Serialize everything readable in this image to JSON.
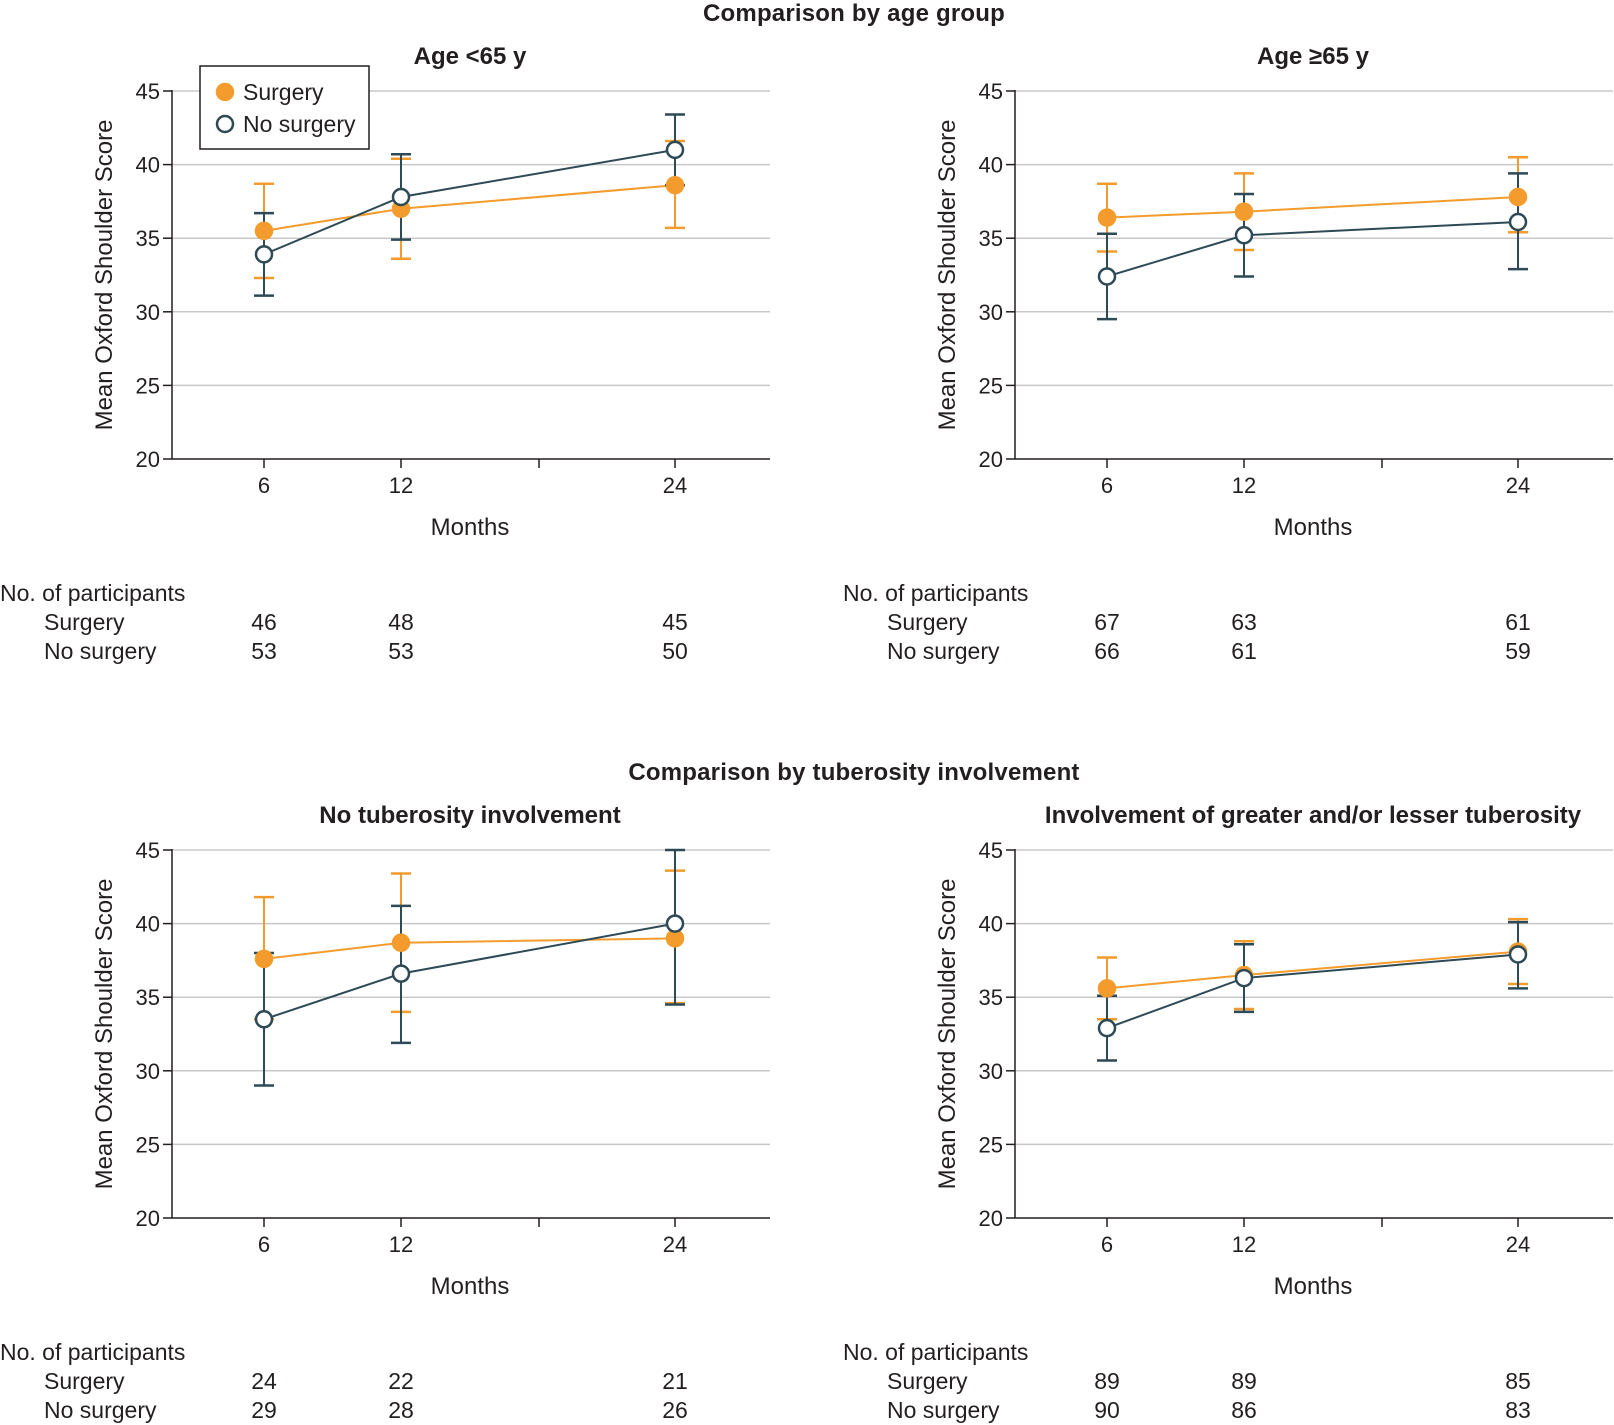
{
  "figure": {
    "section_titles": [
      "Comparison by age group",
      "Comparison by tuberosity involvement"
    ]
  },
  "colors": {
    "surgery": "#f39c2d",
    "no_surgery": "#2d4a56",
    "grid": "#c8c8c8",
    "axis": "#231f20"
  },
  "legend": {
    "surgery_label": "Surgery",
    "no_surgery_label": "No surgery",
    "placement": "top-left of first panel"
  },
  "participants": {
    "header": "No. of participants",
    "row_labels": [
      "Surgery",
      "No surgery"
    ]
  },
  "chart_data": [
    {
      "type": "line",
      "title": "Age <65 y",
      "xlabel": "Months",
      "ylabel": "Mean Oxford Shoulder Score",
      "x": [
        6,
        12,
        24
      ],
      "xlim": [
        0,
        28
      ],
      "x_minor_ticks": [
        18
      ],
      "ylim": [
        20,
        45
      ],
      "yticks": [
        20,
        25,
        30,
        35,
        40,
        45
      ],
      "grid": true,
      "series": [
        {
          "name": "Surgery",
          "values": [
            35.5,
            37.0,
            38.6
          ],
          "ci_low": [
            32.3,
            33.6,
            35.7
          ],
          "ci_high": [
            38.7,
            40.4,
            41.6
          ]
        },
        {
          "name": "No surgery",
          "values": [
            33.9,
            37.8,
            41.0
          ],
          "ci_low": [
            31.1,
            34.9,
            38.6
          ],
          "ci_high": [
            36.7,
            40.7,
            43.4
          ]
        }
      ],
      "participants": {
        "Surgery": [
          46,
          48,
          45
        ],
        "No surgery": [
          53,
          53,
          50
        ]
      }
    },
    {
      "type": "line",
      "title": "Age ≥65 y",
      "xlabel": "Months",
      "ylabel": "Mean Oxford Shoulder Score",
      "x": [
        6,
        12,
        24
      ],
      "xlim": [
        0,
        28
      ],
      "x_minor_ticks": [
        18
      ],
      "ylim": [
        20,
        45
      ],
      "yticks": [
        20,
        25,
        30,
        35,
        40,
        45
      ],
      "grid": true,
      "series": [
        {
          "name": "Surgery",
          "values": [
            36.4,
            36.8,
            37.8
          ],
          "ci_low": [
            34.1,
            34.2,
            35.4
          ],
          "ci_high": [
            38.7,
            39.4,
            40.5
          ]
        },
        {
          "name": "No surgery",
          "values": [
            32.4,
            35.2,
            36.1
          ],
          "ci_low": [
            29.5,
            32.4,
            32.9
          ],
          "ci_high": [
            35.3,
            38.0,
            39.4
          ]
        }
      ],
      "participants": {
        "Surgery": [
          67,
          63,
          61
        ],
        "No surgery": [
          66,
          61,
          59
        ]
      }
    },
    {
      "type": "line",
      "title": "No tuberosity involvement",
      "xlabel": "Months",
      "ylabel": "Mean Oxford Shoulder Score",
      "x": [
        6,
        12,
        24
      ],
      "xlim": [
        0,
        28
      ],
      "x_minor_ticks": [
        18
      ],
      "ylim": [
        20,
        45
      ],
      "yticks": [
        20,
        25,
        30,
        35,
        40,
        45
      ],
      "grid": true,
      "series": [
        {
          "name": "Surgery",
          "values": [
            37.6,
            38.7,
            39.0
          ],
          "ci_low": [
            33.5,
            34.0,
            34.6
          ],
          "ci_high": [
            41.8,
            43.4,
            43.6
          ]
        },
        {
          "name": "No surgery",
          "values": [
            33.5,
            36.6,
            40.0
          ],
          "ci_low": [
            29.0,
            31.9,
            34.5
          ],
          "ci_high": [
            38.0,
            41.2,
            45.0
          ]
        }
      ],
      "participants": {
        "Surgery": [
          24,
          22,
          21
        ],
        "No surgery": [
          29,
          28,
          26
        ]
      }
    },
    {
      "type": "line",
      "title": "Involvement of greater and/or lesser tuberosity",
      "xlabel": "Months",
      "ylabel": "Mean Oxford Shoulder Score",
      "x": [
        6,
        12,
        24
      ],
      "xlim": [
        0,
        28
      ],
      "x_minor_ticks": [
        18
      ],
      "ylim": [
        20,
        45
      ],
      "yticks": [
        20,
        25,
        30,
        35,
        40,
        45
      ],
      "grid": true,
      "series": [
        {
          "name": "Surgery",
          "values": [
            35.6,
            36.5,
            38.1
          ],
          "ci_low": [
            33.5,
            34.2,
            35.9
          ],
          "ci_high": [
            37.7,
            38.8,
            40.3
          ]
        },
        {
          "name": "No surgery",
          "values": [
            32.9,
            36.3,
            37.9
          ],
          "ci_low": [
            30.7,
            34.0,
            35.6
          ],
          "ci_high": [
            35.1,
            38.6,
            40.1
          ]
        }
      ],
      "participants": {
        "Surgery": [
          89,
          89,
          85
        ],
        "No surgery": [
          90,
          86,
          83
        ]
      }
    }
  ]
}
